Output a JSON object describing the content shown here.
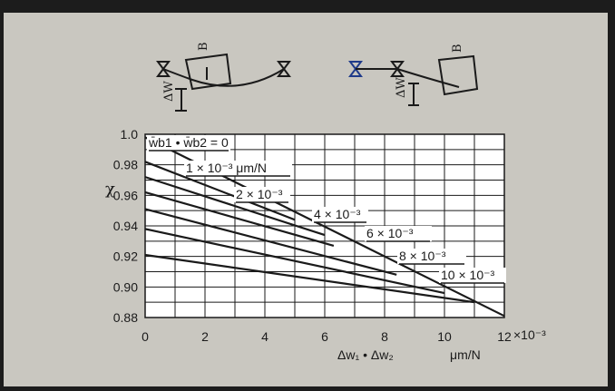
{
  "chart_data": {
    "type": "line",
    "ylabel": "χ",
    "xlabel": "Δw₁ • Δw₂",
    "x_unit": "μm/N",
    "x_multiplier": "×10⁻³",
    "xlim": [
      0,
      12
    ],
    "ylim": [
      0.88,
      1.0
    ],
    "x_ticks": [
      "0",
      "2",
      "4",
      "6",
      "8",
      "10",
      "12"
    ],
    "y_ticks": [
      "0.88",
      "0.90",
      "0.92",
      "0.94",
      "0.96",
      "0.98",
      "1.0"
    ],
    "grid": true,
    "series": [
      {
        "name": "w̄b1 • w̄b2 = 0",
        "x": [
          0,
          12
        ],
        "y": [
          0.998,
          0.881
        ]
      },
      {
        "name": "1 × 10⁻³ μm/N",
        "x": [
          0,
          5
        ],
        "y": [
          0.982,
          0.944
        ]
      },
      {
        "name": "2 × 10⁻³",
        "x": [
          0,
          6
        ],
        "y": [
          0.972,
          0.934
        ]
      },
      {
        "name": "4 × 10⁻³",
        "x": [
          0,
          6.3
        ],
        "y": [
          0.962,
          0.927
        ]
      },
      {
        "name": "6 × 10⁻³",
        "x": [
          0,
          8.4
        ],
        "y": [
          0.951,
          0.908
        ]
      },
      {
        "name": "8 × 10⁻³",
        "x": [
          0,
          10
        ],
        "y": [
          0.938,
          0.896
        ]
      },
      {
        "name": "10 × 10⁻³",
        "x": [
          0,
          11
        ],
        "y": [
          0.921,
          0.89
        ]
      }
    ]
  }
}
